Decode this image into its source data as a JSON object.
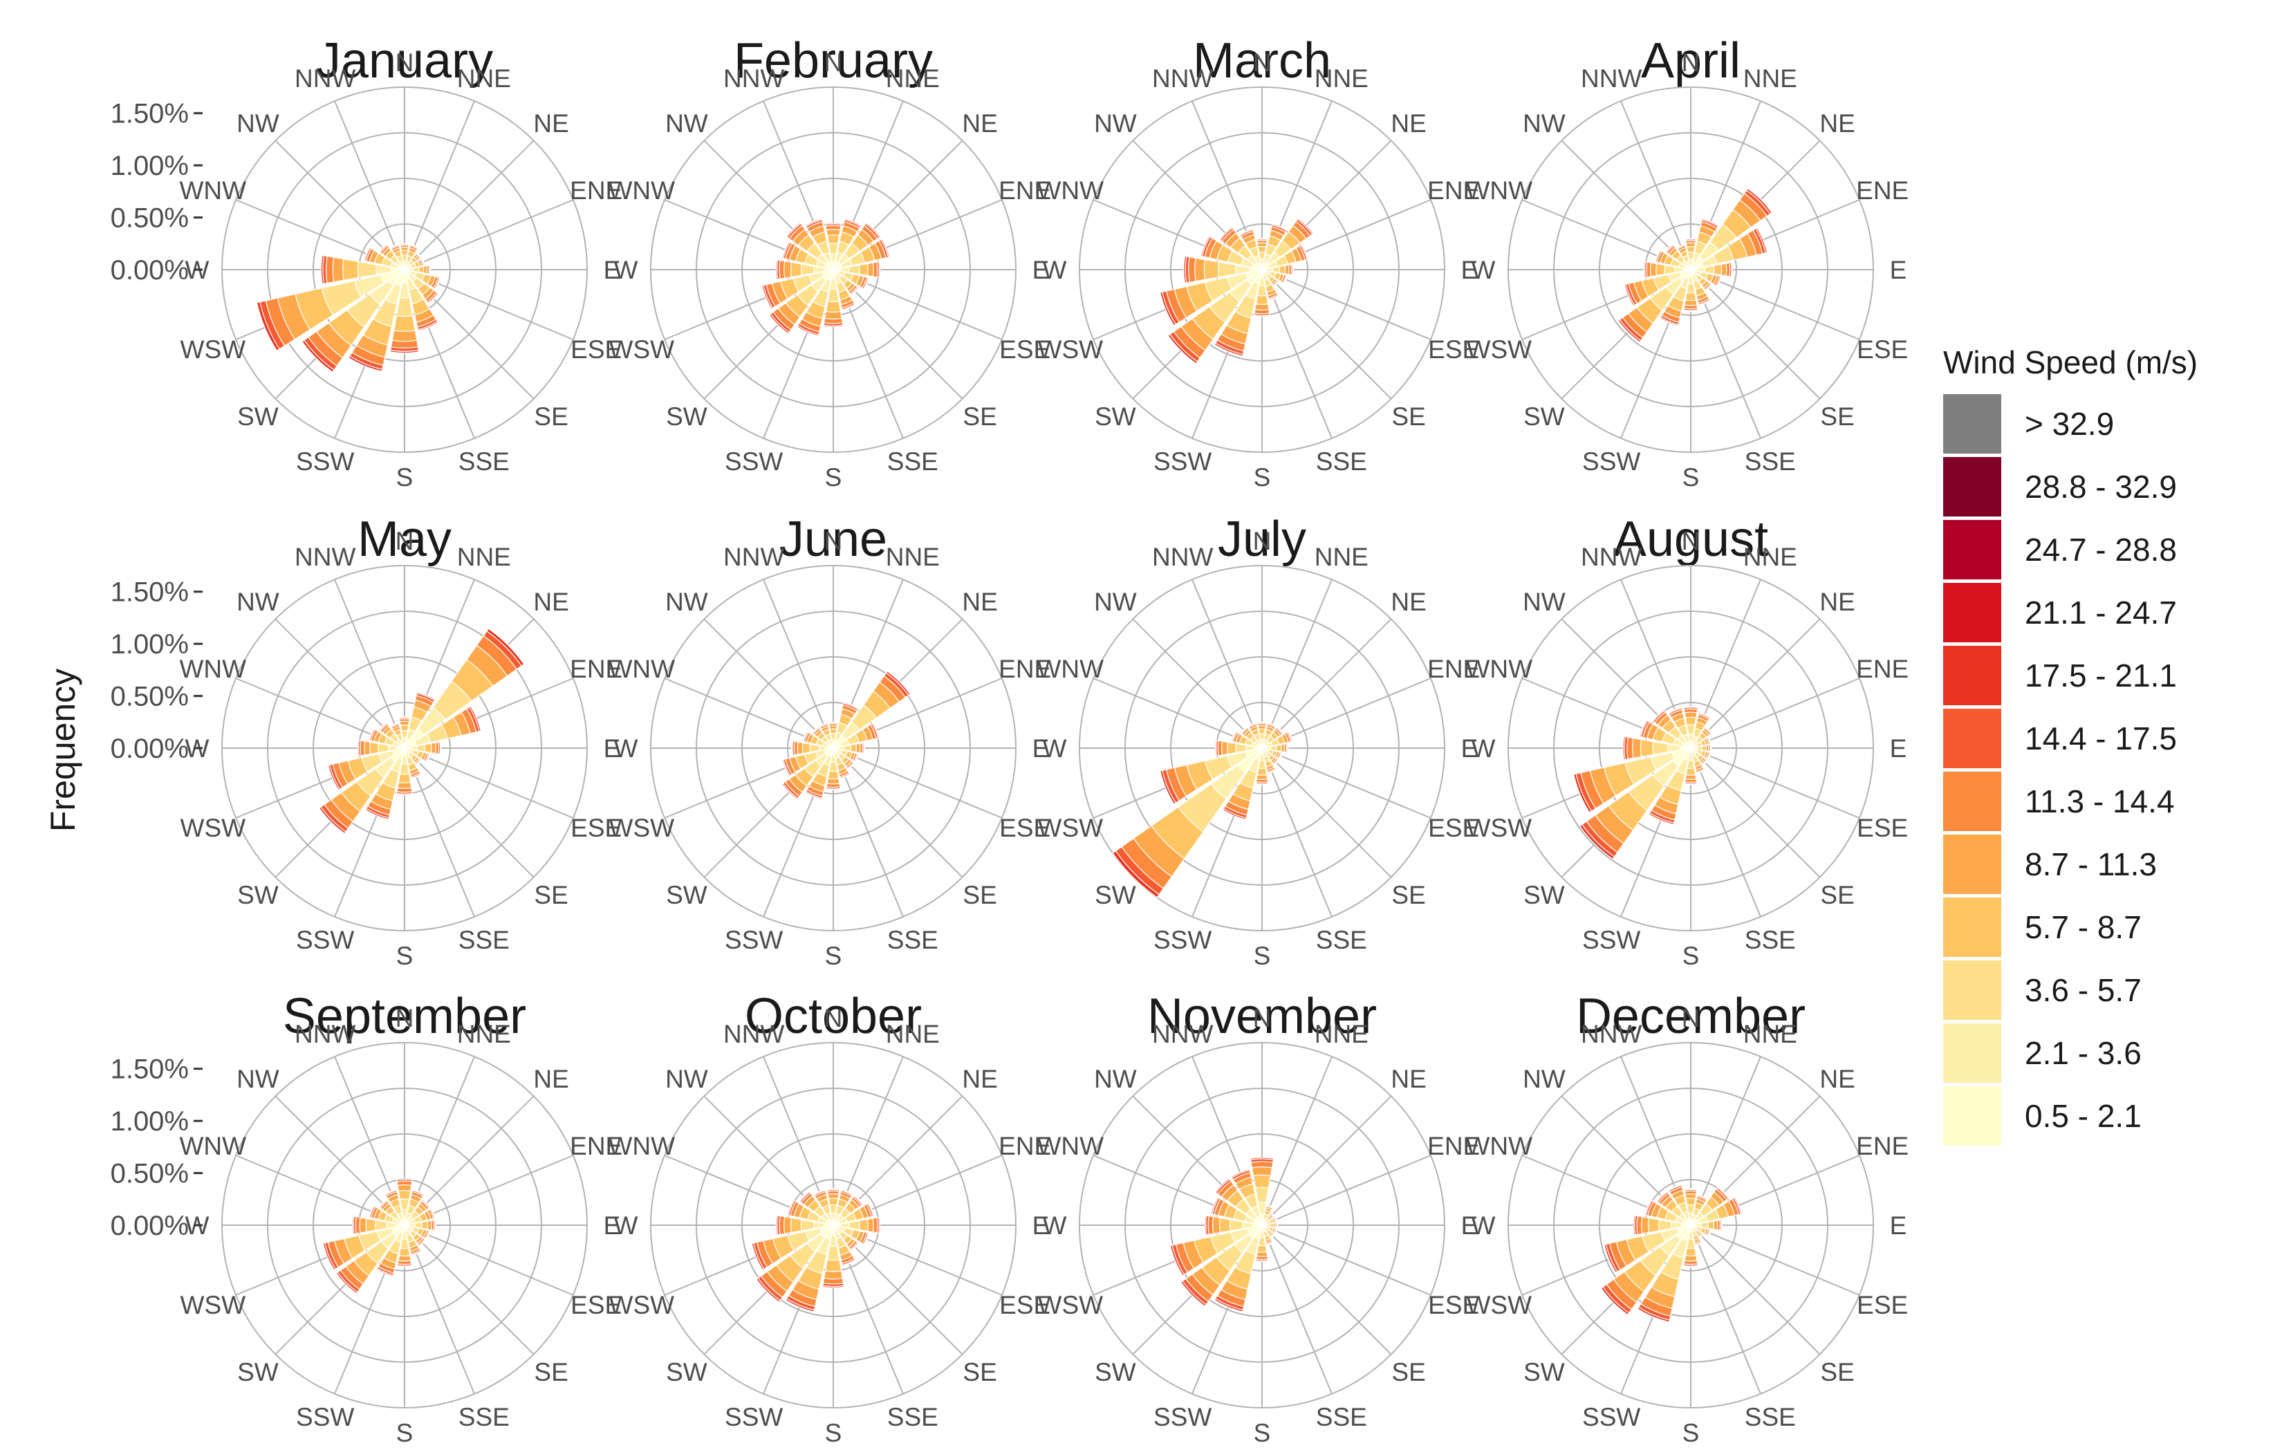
{
  "chart_data": {
    "type": "wind-rose-facets",
    "y_axis_label": "Frequency",
    "r_ticks": [
      "0.00%",
      "0.50%",
      "1.00%",
      "1.50%"
    ],
    "r_tick_values": [
      0,
      0.5,
      1.0,
      1.5
    ],
    "r_max": 1.75,
    "directions": [
      "N",
      "NNE",
      "NE",
      "ENE",
      "E",
      "ESE",
      "SE",
      "SSE",
      "S",
      "SSW",
      "SW",
      "WSW",
      "W",
      "WNW",
      "NW",
      "NNW"
    ],
    "legend": {
      "title": "Wind Speed (m/s)",
      "bins": [
        {
          "label": "> 32.9",
          "color": "#7f7f7f"
        },
        {
          "label": "28.8 - 32.9",
          "color": "#800026"
        },
        {
          "label": "24.7 - 28.8",
          "color": "#b10026"
        },
        {
          "label": "21.1 - 24.7",
          "color": "#d7141e"
        },
        {
          "label": "17.5 - 21.1",
          "color": "#e8341f"
        },
        {
          "label": "14.4 - 17.5",
          "color": "#f75a30"
        },
        {
          "label": "11.3 - 14.4",
          "color": "#fb8a3e"
        },
        {
          "label": "8.7 - 11.3",
          "color": "#fda84a"
        },
        {
          "label": "5.7 - 8.7",
          "color": "#fec562"
        },
        {
          "label": "3.6 - 5.7",
          "color": "#fedf8a"
        },
        {
          "label": "2.1 - 3.6",
          "color": "#ffefad"
        },
        {
          "label": "0.5 - 2.1",
          "color": "#ffffcc"
        }
      ]
    },
    "months": [
      {
        "name": "January",
        "totals": [
          0.25,
          0.25,
          0.2,
          0.2,
          0.25,
          0.35,
          0.4,
          0.6,
          0.8,
          1.0,
          1.2,
          1.45,
          0.8,
          0.4,
          0.3,
          0.25
        ]
      },
      {
        "name": "February",
        "totals": [
          0.45,
          0.5,
          0.55,
          0.55,
          0.45,
          0.35,
          0.3,
          0.4,
          0.55,
          0.65,
          0.75,
          0.7,
          0.55,
          0.5,
          0.55,
          0.5
        ]
      },
      {
        "name": "March",
        "totals": [
          0.3,
          0.45,
          0.6,
          0.45,
          0.3,
          0.25,
          0.2,
          0.3,
          0.45,
          0.85,
          1.1,
          1.0,
          0.75,
          0.6,
          0.5,
          0.4
        ]
      },
      {
        "name": "April",
        "totals": [
          0.3,
          0.5,
          0.95,
          0.75,
          0.4,
          0.3,
          0.25,
          0.35,
          0.4,
          0.55,
          0.85,
          0.65,
          0.45,
          0.35,
          0.3,
          0.25
        ]
      },
      {
        "name": "May",
        "totals": [
          0.3,
          0.55,
          1.4,
          0.75,
          0.35,
          0.25,
          0.2,
          0.3,
          0.45,
          0.7,
          1.0,
          0.75,
          0.45,
          0.35,
          0.3,
          0.25
        ]
      },
      {
        "name": "June",
        "totals": [
          0.25,
          0.45,
          0.9,
          0.45,
          0.3,
          0.25,
          0.25,
          0.3,
          0.4,
          0.5,
          0.6,
          0.5,
          0.4,
          0.3,
          0.25,
          0.25
        ]
      },
      {
        "name": "July",
        "totals": [
          0.25,
          0.25,
          0.25,
          0.3,
          0.25,
          0.2,
          0.2,
          0.25,
          0.35,
          0.7,
          1.75,
          1.0,
          0.45,
          0.3,
          0.25,
          0.25
        ]
      },
      {
        "name": "August",
        "totals": [
          0.4,
          0.35,
          0.25,
          0.2,
          0.2,
          0.2,
          0.2,
          0.25,
          0.35,
          0.75,
          1.3,
          1.15,
          0.65,
          0.5,
          0.45,
          0.4
        ]
      },
      {
        "name": "September",
        "totals": [
          0.45,
          0.35,
          0.3,
          0.3,
          0.3,
          0.25,
          0.25,
          0.3,
          0.4,
          0.5,
          0.8,
          0.8,
          0.5,
          0.35,
          0.3,
          0.35
        ]
      },
      {
        "name": "October",
        "totals": [
          0.35,
          0.35,
          0.35,
          0.4,
          0.45,
          0.35,
          0.3,
          0.4,
          0.6,
          0.85,
          0.9,
          0.8,
          0.55,
          0.45,
          0.4,
          0.35
        ]
      },
      {
        "name": "November",
        "totals": [
          0.65,
          0.2,
          0.15,
          0.15,
          0.15,
          0.15,
          0.15,
          0.2,
          0.35,
          0.85,
          0.95,
          0.9,
          0.55,
          0.5,
          0.55,
          0.55
        ]
      },
      {
        "name": "December",
        "totals": [
          0.35,
          0.3,
          0.45,
          0.5,
          0.3,
          0.2,
          0.15,
          0.2,
          0.4,
          0.95,
          1.05,
          0.85,
          0.55,
          0.45,
          0.4,
          0.4
        ]
      }
    ]
  }
}
